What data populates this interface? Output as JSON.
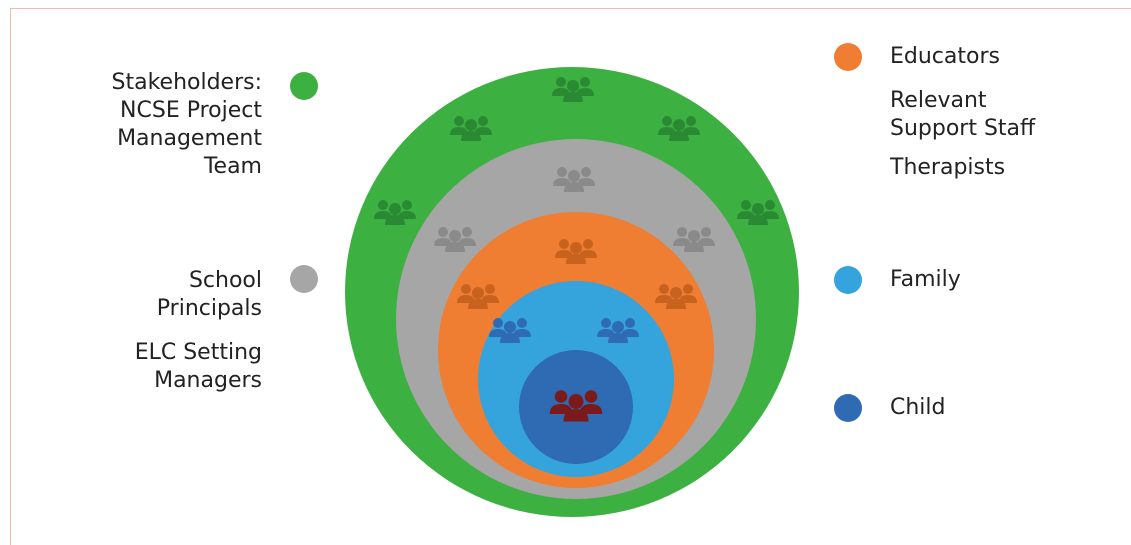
{
  "colors": {
    "stakeholders": "#3db042",
    "school": "#a6a6a6",
    "educators": "#ef7d32",
    "family": "#36a4dc",
    "child": "#2e6bb3",
    "icon_child": "#7b1a1a",
    "icon_family": "#2e6bb3",
    "icon_educators": "#c8621f",
    "icon_school": "#8a8a8a",
    "icon_stakeholders": "#2a8a34",
    "frame": "#f2b8ad"
  },
  "left_legend": {
    "stakeholders": {
      "lines": [
        "Stakeholders:",
        "NCSE Project",
        "Management",
        "Team"
      ],
      "color_key": "stakeholders"
    },
    "school": {
      "group1": [
        "School",
        "Principals"
      ],
      "group2": [
        "ELC Setting",
        "Managers"
      ],
      "color_key": "school"
    }
  },
  "right_legend": {
    "educators": {
      "lines": [
        "Educators"
      ],
      "extra_1": [
        "Relevant",
        "Support Staff"
      ],
      "extra_2": [
        "Therapists"
      ],
      "color_key": "educators"
    },
    "family": {
      "lines": [
        "Family"
      ],
      "color_key": "family"
    },
    "child": {
      "lines": [
        "Child"
      ],
      "color_key": "child"
    }
  },
  "icon": "people-group-icon"
}
